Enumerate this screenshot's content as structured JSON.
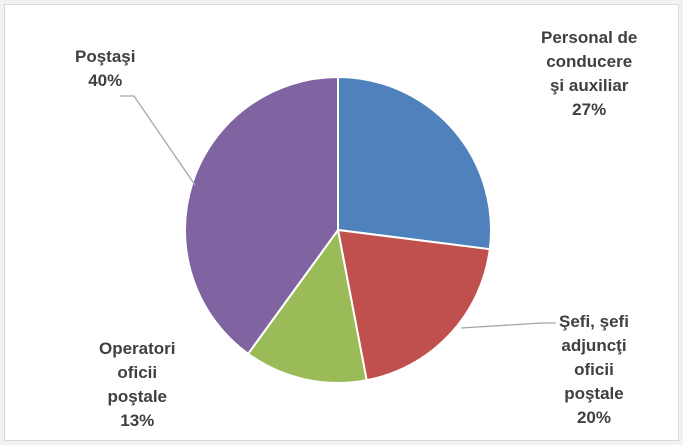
{
  "chart_data": {
    "type": "pie",
    "title": "",
    "start_angle_deg": 0,
    "direction": "clockwise",
    "slices": [
      {
        "label_lines": [
          "Personal de",
          "conducere",
          "şi auxiliar"
        ],
        "value": 27,
        "value_label": "27%",
        "color": "#4f81bd"
      },
      {
        "label_lines": [
          "Şefi, şefi",
          "adjuncţi",
          "oficii",
          "poştale"
        ],
        "value": 20,
        "value_label": "20%",
        "color": "#c0504d"
      },
      {
        "label_lines": [
          "Operatori",
          "oficii",
          "poştale"
        ],
        "value": 13,
        "value_label": "13%",
        "color": "#9bbb59"
      },
      {
        "label_lines": [
          "Poştaşi"
        ],
        "value": 40,
        "value_label": "40%",
        "color": "#8064a2"
      }
    ],
    "legend": "none",
    "leader_line_color": "#a6a6a6"
  }
}
